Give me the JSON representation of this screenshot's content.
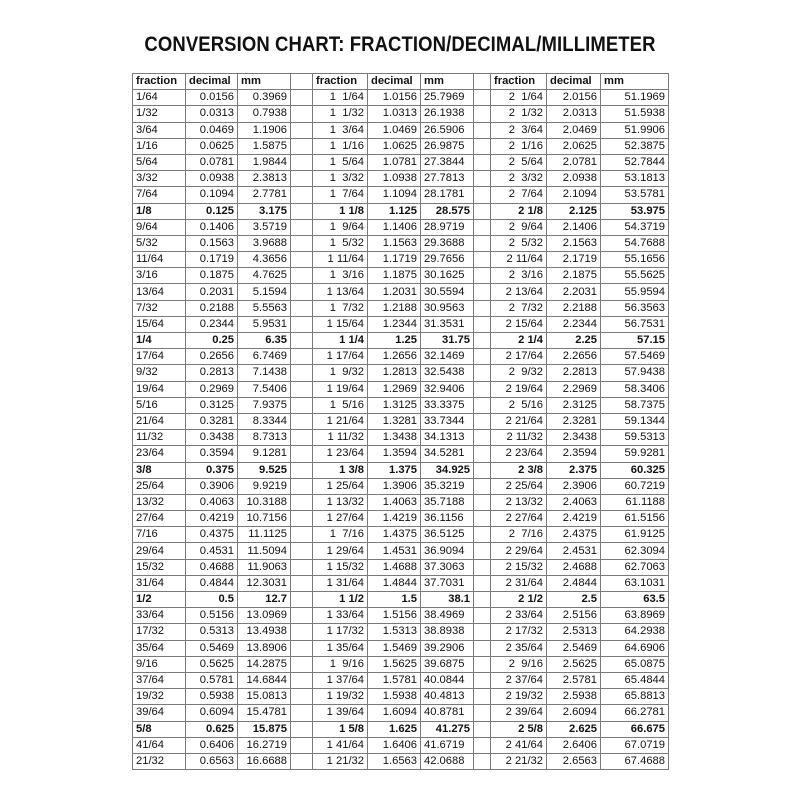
{
  "title": "CONVERSION CHART: FRACTION/DECIMAL/MILLIMETER",
  "headers": [
    "fraction",
    "decimal",
    "mm",
    "fraction",
    "decimal",
    "mm",
    "fraction",
    "decimal",
    "mm"
  ],
  "rows": [
    [
      "1/64",
      "0.0156",
      "0.3969",
      "1  1/64",
      "1.0156",
      "25.7969",
      "2  1/64",
      "2.0156",
      "51.1969"
    ],
    [
      "1/32",
      "0.0313",
      "0.7938",
      "1  1/32",
      "1.0313",
      "26.1938",
      "2  1/32",
      "2.0313",
      "51.5938"
    ],
    [
      "3/64",
      "0.0469",
      "1.1906",
      "1  3/64",
      "1.0469",
      "26.5906",
      "2  3/64",
      "2.0469",
      "51.9906"
    ],
    [
      "1/16",
      "0.0625",
      "1.5875",
      "1  1/16",
      "1.0625",
      "26.9875",
      "2  1/16",
      "2.0625",
      "52.3875"
    ],
    [
      "5/64",
      "0.0781",
      "1.9844",
      "1  5/64",
      "1.0781",
      "27.3844",
      "2  5/64",
      "2.0781",
      "52.7844"
    ],
    [
      "3/32",
      "0.0938",
      "2.3813",
      "1  3/32",
      "1.0938",
      "27.7813",
      "2  3/32",
      "2.0938",
      "53.1813"
    ],
    [
      "7/64",
      "0.1094",
      "2.7781",
      "1  7/64",
      "1.1094",
      "28.1781",
      "2  7/64",
      "2.1094",
      "53.5781"
    ],
    [
      "1/8",
      "0.125",
      "3.175",
      "1 1/8",
      "1.125",
      "28.575",
      "2 1/8",
      "2.125",
      "53.975"
    ],
    [
      "9/64",
      "0.1406",
      "3.5719",
      "1  9/64",
      "1.1406",
      "28.9719",
      "2  9/64",
      "2.1406",
      "54.3719"
    ],
    [
      "5/32",
      "0.1563",
      "3.9688",
      "1  5/32",
      "1.1563",
      "29.3688",
      "2  5/32",
      "2.1563",
      "54.7688"
    ],
    [
      "11/64",
      "0.1719",
      "4.3656",
      "1 11/64",
      "1.1719",
      "29.7656",
      "2 11/64",
      "2.1719",
      "55.1656"
    ],
    [
      "3/16",
      "0.1875",
      "4.7625",
      "1  3/16",
      "1.1875",
      "30.1625",
      "2  3/16",
      "2.1875",
      "55.5625"
    ],
    [
      "13/64",
      "0.2031",
      "5.1594",
      "1 13/64",
      "1.2031",
      "30.5594",
      "2 13/64",
      "2.2031",
      "55.9594"
    ],
    [
      "7/32",
      "0.2188",
      "5.5563",
      "1  7/32",
      "1.2188",
      "30.9563",
      "2  7/32",
      "2.2188",
      "56.3563"
    ],
    [
      "15/64",
      "0.2344",
      "5.9531",
      "1 15/64",
      "1.2344",
      "31.3531",
      "2 15/64",
      "2.2344",
      "56.7531"
    ],
    [
      "1/4",
      "0.25",
      "6.35",
      "1 1/4",
      "1.25",
      "31.75",
      "2 1/4",
      "2.25",
      "57.15"
    ],
    [
      "17/64",
      "0.2656",
      "6.7469",
      "1 17/64",
      "1.2656",
      "32.1469",
      "2 17/64",
      "2.2656",
      "57.5469"
    ],
    [
      "9/32",
      "0.2813",
      "7.1438",
      "1  9/32",
      "1.2813",
      "32.5438",
      "2  9/32",
      "2.2813",
      "57.9438"
    ],
    [
      "19/64",
      "0.2969",
      "7.5406",
      "1 19/64",
      "1.2969",
      "32.9406",
      "2 19/64",
      "2.2969",
      "58.3406"
    ],
    [
      "5/16",
      "0.3125",
      "7.9375",
      "1  5/16",
      "1.3125",
      "33.3375",
      "2  5/16",
      "2.3125",
      "58.7375"
    ],
    [
      "21/64",
      "0.3281",
      "8.3344",
      "1 21/64",
      "1.3281",
      "33.7344",
      "2 21/64",
      "2.3281",
      "59.1344"
    ],
    [
      "11/32",
      "0.3438",
      "8.7313",
      "1 11/32",
      "1.3438",
      "34.1313",
      "2 11/32",
      "2.3438",
      "59.5313"
    ],
    [
      "23/64",
      "0.3594",
      "9.1281",
      "1 23/64",
      "1.3594",
      "34.5281",
      "2 23/64",
      "2.3594",
      "59.9281"
    ],
    [
      "3/8",
      "0.375",
      "9.525",
      "1 3/8",
      "1.375",
      "34.925",
      "2 3/8",
      "2.375",
      "60.325"
    ],
    [
      "25/64",
      "0.3906",
      "9.9219",
      "1 25/64",
      "1.3906",
      "35.3219",
      "2 25/64",
      "2.3906",
      "60.7219"
    ],
    [
      "13/32",
      "0.4063",
      "10.3188",
      "1 13/32",
      "1.4063",
      "35.7188",
      "2 13/32",
      "2.4063",
      "61.1188"
    ],
    [
      "27/64",
      "0.4219",
      "10.7156",
      "1 27/64",
      "1.4219",
      "36.1156",
      "2 27/64",
      "2.4219",
      "61.5156"
    ],
    [
      "7/16",
      "0.4375",
      "11.1125",
      "1  7/16",
      "1.4375",
      "36.5125",
      "2  7/16",
      "2.4375",
      "61.9125"
    ],
    [
      "29/64",
      "0.4531",
      "11.5094",
      "1 29/64",
      "1.4531",
      "36.9094",
      "2 29/64",
      "2.4531",
      "62.3094"
    ],
    [
      "15/32",
      "0.4688",
      "11.9063",
      "1 15/32",
      "1.4688",
      "37.3063",
      "2 15/32",
      "2.4688",
      "62.7063"
    ],
    [
      "31/64",
      "0.4844",
      "12.3031",
      "1 31/64",
      "1.4844",
      "37.7031",
      "2 31/64",
      "2.4844",
      "63.1031"
    ],
    [
      "1/2",
      "0.5",
      "12.7",
      "1 1/2",
      "1.5",
      "38.1",
      "2 1/2",
      "2.5",
      "63.5"
    ],
    [
      "33/64",
      "0.5156",
      "13.0969",
      "1 33/64",
      "1.5156",
      "38.4969",
      "2 33/64",
      "2.5156",
      "63.8969"
    ],
    [
      "17/32",
      "0.5313",
      "13.4938",
      "1 17/32",
      "1.5313",
      "38.8938",
      "2 17/32",
      "2.5313",
      "64.2938"
    ],
    [
      "35/64",
      "0.5469",
      "13.8906",
      "1 35/64",
      "1.5469",
      "39.2906",
      "2 35/64",
      "2.5469",
      "64.6906"
    ],
    [
      "9/16",
      "0.5625",
      "14.2875",
      "1  9/16",
      "1.5625",
      "39.6875",
      "2  9/16",
      "2.5625",
      "65.0875"
    ],
    [
      "37/64",
      "0.5781",
      "14.6844",
      "1 37/64",
      "1.5781",
      "40.0844",
      "2 37/64",
      "2.5781",
      "65.4844"
    ],
    [
      "19/32",
      "0.5938",
      "15.0813",
      "1 19/32",
      "1.5938",
      "40.4813",
      "2 19/32",
      "2.5938",
      "65.8813"
    ],
    [
      "39/64",
      "0.6094",
      "15.4781",
      "1 39/64",
      "1.6094",
      "40.8781",
      "2 39/64",
      "2.6094",
      "66.2781"
    ],
    [
      "5/8",
      "0.625",
      "15.875",
      "1 5/8",
      "1.625",
      "41.275",
      "2 5/8",
      "2.625",
      "66.675"
    ],
    [
      "41/64",
      "0.6406",
      "16.2719",
      "1 41/64",
      "1.6406",
      "41.6719",
      "2 41/64",
      "2.6406",
      "67.0719"
    ],
    [
      "21/32",
      "0.6563",
      "16.6688",
      "1 21/32",
      "1.6563",
      "42.0688",
      "2 21/32",
      "2.6563",
      "67.4688"
    ]
  ]
}
